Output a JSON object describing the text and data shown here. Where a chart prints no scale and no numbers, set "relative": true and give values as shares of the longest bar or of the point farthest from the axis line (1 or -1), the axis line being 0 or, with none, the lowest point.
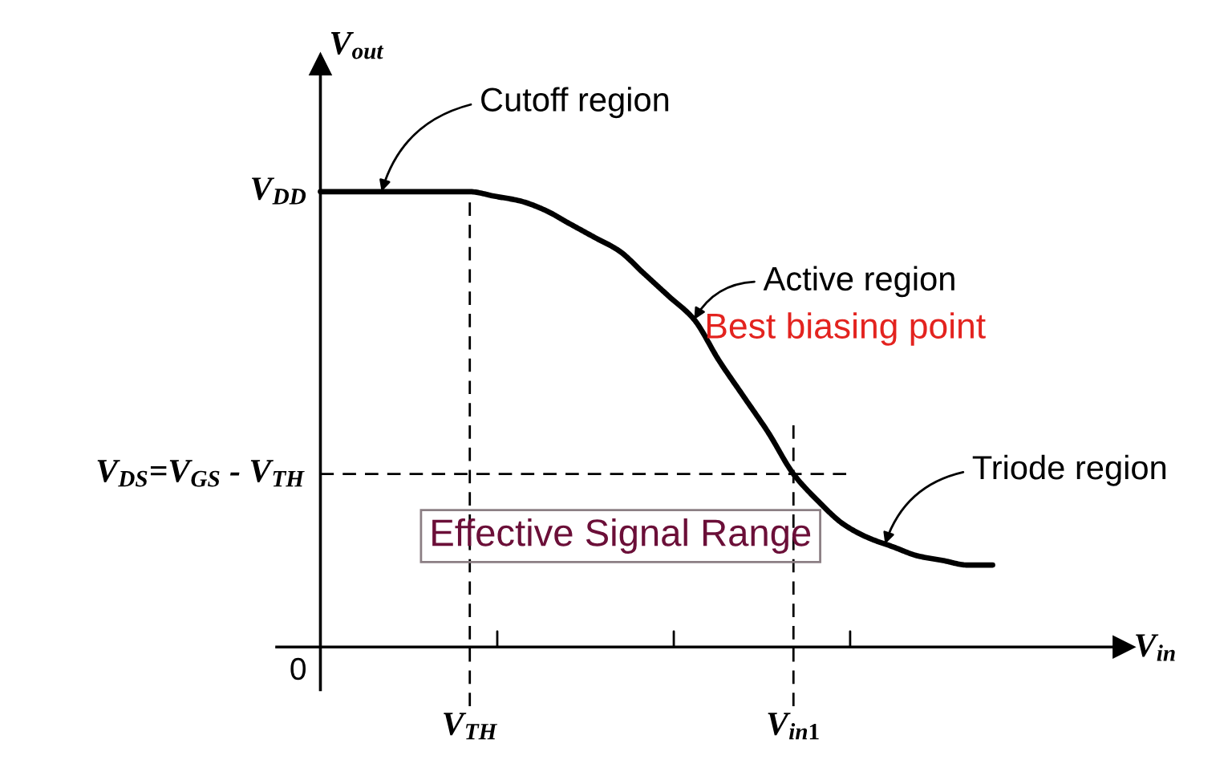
{
  "chart_data": {
    "type": "line",
    "relative": true,
    "xlabel": "V$_{in}$",
    "ylabel": "V$_{out}$",
    "categories": [
      null,
      null,
      null,
      null,
      null,
      null,
      "V$_{TH}$",
      null,
      null,
      null,
      null,
      null,
      null,
      null,
      null,
      null,
      null,
      null,
      null,
      "V$_{in1}$",
      null,
      null,
      null,
      null,
      null,
      null,
      null,
      null
    ],
    "series": [
      {
        "color": "#000000",
        "values": [
          1,
          1,
          1,
          1,
          1,
          1,
          1,
          0.99,
          0.98,
          0.96,
          0.93,
          0.9,
          0.87,
          0.82,
          0.77,
          0.72,
          0.63,
          0.55,
          0.47,
          0.38,
          0.32,
          0.27,
          0.24,
          0.22,
          0.2,
          0.19,
          0.18,
          0.18
        ]
      }
    ],
    "line_style": "solid",
    "ref_lines": [
      {
        "axis": "x",
        "value": "V$_{TH}$",
        "line_style": "dashed",
        "color": "#000000"
      },
      {
        "axis": "x",
        "value": "V$_{in1}$",
        "line_style": "dashed",
        "color": "#000000"
      },
      {
        "axis": "y",
        "value": 0.38,
        "label": "V$_{DS}$=V$_{GS}$ - V$_{TH}$",
        "line_style": "dashed",
        "color": "#000000"
      }
    ],
    "annotations": [
      "Cutoff region",
      "Active region",
      "Best biasing point",
      "Triode region",
      "Effective Signal Range",
      "V$_{DD}$",
      "0"
    ]
  }
}
